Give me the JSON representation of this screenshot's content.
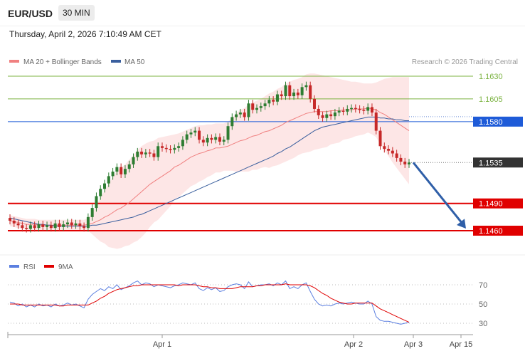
{
  "header": {
    "symbol": "EUR/USD",
    "timeframe": "30 MIN",
    "datetime": "Thursday, April 2, 2026 7:10:49 AM CET"
  },
  "legend": {
    "ma20": "MA 20 + Bollinger Bands",
    "ma50": "MA 50",
    "credit": "Research © 2026 Trading Central",
    "rsi": "RSI",
    "rsi_ma": "9MA"
  },
  "colors": {
    "ma20": "#f08080",
    "bands_fill": "#fde0e0",
    "ma50": "#3a5f9e",
    "candle_up": "#2e7d32",
    "candle_down": "#c62828",
    "resistance_green": "#7cb342",
    "support_red": "#e00000",
    "pivot_blue": "#1e5bd8",
    "current_price": "#333333",
    "rsi_line": "#5b7fe0",
    "rsi_ma_line": "#e00000",
    "arrow": "#2f5fa8"
  },
  "chart_data": [
    {
      "type": "candlestick",
      "title": "EUR/USD",
      "timeframe": "30 MIN",
      "x_ticks": [
        "Apr 1",
        "Apr 2",
        "Apr 3",
        "Apr 15"
      ],
      "ylim": [
        1.1445,
        1.164
      ],
      "levels": [
        {
          "label": "1.1630",
          "value": 1.163,
          "kind": "resistance"
        },
        {
          "label": "1.1605",
          "value": 1.1605,
          "kind": "resistance"
        },
        {
          "label": "1.1580",
          "value": 1.158,
          "kind": "pivot"
        },
        {
          "label": "1.1535",
          "value": 1.1535,
          "kind": "current"
        },
        {
          "label": "1.1490",
          "value": 1.149,
          "kind": "support"
        },
        {
          "label": "1.1460",
          "value": 1.146,
          "kind": "support"
        }
      ],
      "closes": [
        1.1471,
        1.1468,
        1.1466,
        1.1463,
        1.1462,
        1.1466,
        1.1463,
        1.1467,
        1.1464,
        1.1466,
        1.1463,
        1.1468,
        1.1464,
        1.1467,
        1.1469,
        1.1466,
        1.1468,
        1.1465,
        1.1463,
        1.1475,
        1.1485,
        1.1498,
        1.1506,
        1.1512,
        1.152,
        1.1525,
        1.153,
        1.1522,
        1.1528,
        1.1533,
        1.1541,
        1.1547,
        1.1544,
        1.1546,
        1.1545,
        1.1541,
        1.1553,
        1.1551,
        1.155,
        1.1549,
        1.1551,
        1.1553,
        1.156,
        1.1566,
        1.1568,
        1.157,
        1.156,
        1.1557,
        1.1562,
        1.156,
        1.1563,
        1.1558,
        1.156,
        1.1575,
        1.1585,
        1.1588,
        1.159,
        1.1585,
        1.16,
        1.1593,
        1.1595,
        1.1597,
        1.16,
        1.1604,
        1.1602,
        1.161,
        1.1608,
        1.162,
        1.1608,
        1.1612,
        1.1609,
        1.1618,
        1.162,
        1.1605,
        1.1594,
        1.1587,
        1.1584,
        1.1588,
        1.1586,
        1.159,
        1.1592,
        1.1591,
        1.1594,
        1.1595,
        1.1594,
        1.1593,
        1.1592,
        1.1596,
        1.159,
        1.157,
        1.1553,
        1.155,
        1.1548,
        1.1545,
        1.154,
        1.1536,
        1.1533,
        1.1535
      ],
      "ma20": [
        1.1471,
        1.147,
        1.1469,
        1.1468,
        1.1467,
        1.1467,
        1.1467,
        1.1466,
        1.1466,
        1.1466,
        1.1466,
        1.1466,
        1.1466,
        1.1466,
        1.1466,
        1.1466,
        1.1466,
        1.1466,
        1.1466,
        1.1467,
        1.1468,
        1.147,
        1.1472,
        1.1475,
        1.1477,
        1.148,
        1.1483,
        1.1485,
        1.1488,
        1.1491,
        1.1495,
        1.1499,
        1.1503,
        1.1507,
        1.1511,
        1.1514,
        1.1517,
        1.152,
        1.1523,
        1.1526,
        1.153,
        1.1532,
        1.1535,
        1.1538,
        1.1541,
        1.1543,
        1.1545,
        1.1546,
        1.1548,
        1.1549,
        1.1551,
        1.1551,
        1.1552,
        1.1553,
        1.1555,
        1.1557,
        1.1559,
        1.156,
        1.1562,
        1.1564,
        1.1565,
        1.1567,
        1.1569,
        1.157,
        1.1572,
        1.1574,
        1.1576,
        1.1579,
        1.1581,
        1.1583,
        1.1585,
        1.1587,
        1.1589,
        1.159,
        1.1591,
        1.1591,
        1.1591,
        1.1591,
        1.1592,
        1.1592,
        1.1592,
        1.1593,
        1.1593,
        1.1593,
        1.1594,
        1.1594,
        1.1594,
        1.1595,
        1.1594,
        1.1593,
        1.159,
        1.1588,
        1.1585,
        1.1582,
        1.1579,
        1.1576,
        1.1573,
        1.157
      ],
      "bb_upper": [
        1.1477,
        1.1476,
        1.1475,
        1.1474,
        1.1473,
        1.1473,
        1.1473,
        1.1472,
        1.1472,
        1.1472,
        1.1472,
        1.1472,
        1.1472,
        1.1472,
        1.1472,
        1.1472,
        1.1472,
        1.1472,
        1.1472,
        1.1474,
        1.148,
        1.1488,
        1.1496,
        1.1504,
        1.1512,
        1.1519,
        1.1526,
        1.1529,
        1.1533,
        1.1538,
        1.1543,
        1.1549,
        1.1553,
        1.1556,
        1.1558,
        1.1559,
        1.1562,
        1.1563,
        1.1564,
        1.1565,
        1.1566,
        1.1567,
        1.1569,
        1.1571,
        1.1573,
        1.1575,
        1.1576,
        1.1576,
        1.1577,
        1.1577,
        1.1578,
        1.1578,
        1.1578,
        1.158,
        1.1584,
        1.1589,
        1.1593,
        1.1595,
        1.1599,
        1.1601,
        1.1603,
        1.1605,
        1.1608,
        1.1611,
        1.1613,
        1.1616,
        1.1618,
        1.1622,
        1.1624,
        1.1626,
        1.1627,
        1.1629,
        1.1632,
        1.1633,
        1.1633,
        1.1632,
        1.1631,
        1.163,
        1.1629,
        1.1628,
        1.1627,
        1.1626,
        1.1625,
        1.1624,
        1.1624,
        1.1623,
        1.1622,
        1.1622,
        1.1622,
        1.1623,
        1.1625,
        1.1627,
        1.1628,
        1.1629,
        1.1629,
        1.1629,
        1.1629,
        1.1629
      ],
      "bb_lower": [
        1.1465,
        1.1464,
        1.1463,
        1.1462,
        1.1461,
        1.1461,
        1.1461,
        1.146,
        1.146,
        1.146,
        1.146,
        1.146,
        1.146,
        1.146,
        1.146,
        1.146,
        1.146,
        1.146,
        1.146,
        1.146,
        1.1456,
        1.1452,
        1.1448,
        1.1446,
        1.1442,
        1.1441,
        1.144,
        1.1441,
        1.1443,
        1.1444,
        1.1447,
        1.1449,
        1.1453,
        1.1458,
        1.1464,
        1.1469,
        1.1472,
        1.1477,
        1.1482,
        1.1487,
        1.1494,
        1.1497,
        1.1501,
        1.1505,
        1.1509,
        1.1511,
        1.1514,
        1.1516,
        1.1519,
        1.1521,
        1.1524,
        1.1524,
        1.1526,
        1.1526,
        1.1526,
        1.1525,
        1.1525,
        1.1525,
        1.1525,
        1.1527,
        1.1527,
        1.1529,
        1.153,
        1.1529,
        1.1531,
        1.1532,
        1.1534,
        1.1536,
        1.1538,
        1.154,
        1.1543,
        1.1545,
        1.1546,
        1.1547,
        1.1549,
        1.155,
        1.1551,
        1.1552,
        1.1555,
        1.1556,
        1.1557,
        1.156,
        1.1561,
        1.1562,
        1.1564,
        1.1565,
        1.1566,
        1.1568,
        1.1566,
        1.1563,
        1.1555,
        1.1549,
        1.1542,
        1.1535,
        1.1529,
        1.1523,
        1.1517,
        1.1511
      ],
      "ma50": [
        1.1474,
        1.1473,
        1.1472,
        1.1471,
        1.147,
        1.1469,
        1.1468,
        1.1467,
        1.1467,
        1.1466,
        1.1466,
        1.1465,
        1.1465,
        1.1465,
        1.1465,
        1.1465,
        1.1465,
        1.1465,
        1.1465,
        1.1465,
        1.1466,
        1.1466,
        1.1467,
        1.1468,
        1.1469,
        1.147,
        1.1471,
        1.1472,
        1.1473,
        1.1474,
        1.1475,
        1.1477,
        1.1478,
        1.148,
        1.1482,
        1.1484,
        1.1486,
        1.1488,
        1.149,
        1.1492,
        1.1494,
        1.1496,
        1.1498,
        1.15,
        1.1502,
        1.1504,
        1.1506,
        1.1508,
        1.151,
        1.1512,
        1.1514,
        1.1516,
        1.1518,
        1.152,
        1.1522,
        1.1524,
        1.1526,
        1.1528,
        1.153,
        1.1532,
        1.1534,
        1.1536,
        1.1538,
        1.154,
        1.1542,
        1.1545,
        1.1547,
        1.155,
        1.1552,
        1.1555,
        1.1558,
        1.1561,
        1.1564,
        1.1567,
        1.157,
        1.1572,
        1.1574,
        1.1575,
        1.1576,
        1.1577,
        1.1578,
        1.1579,
        1.158,
        1.1581,
        1.1582,
        1.1583,
        1.1584,
        1.1585,
        1.1585,
        1.1585,
        1.1584,
        1.1584,
        1.1583,
        1.1583,
        1.1582,
        1.1582,
        1.1581,
        1.1581
      ],
      "forecast_arrow": {
        "from": 1.1535,
        "to": 1.146
      }
    },
    {
      "type": "line",
      "title": "RSI",
      "y_ticks": [
        70,
        50,
        30
      ],
      "ylim": [
        25,
        80
      ],
      "series": [
        {
          "name": "RSI",
          "values": [
            52,
            51,
            48,
            50,
            47,
            49,
            47,
            50,
            48,
            49,
            47,
            50,
            48,
            49,
            51,
            49,
            50,
            48,
            46,
            55,
            60,
            63,
            66,
            64,
            68,
            66,
            70,
            65,
            67,
            69,
            72,
            74,
            70,
            72,
            71,
            68,
            70,
            69,
            68,
            67,
            69,
            70,
            72,
            71,
            70,
            72,
            66,
            64,
            67,
            65,
            67,
            63,
            64,
            68,
            70,
            71,
            70,
            66,
            73,
            68,
            69,
            70,
            70,
            71,
            69,
            72,
            70,
            74,
            66,
            68,
            66,
            70,
            72,
            63,
            55,
            50,
            48,
            49,
            48,
            50,
            51,
            50,
            51,
            52,
            51,
            50,
            50,
            53,
            50,
            37,
            33,
            32,
            32,
            31,
            30,
            29,
            30,
            31
          ]
        },
        {
          "name": "9MA",
          "values": [
            50,
            50,
            50,
            49,
            49,
            49,
            49,
            49,
            49,
            49,
            49,
            49,
            48,
            48,
            49,
            49,
            49,
            49,
            49,
            49,
            51,
            53,
            56,
            58,
            61,
            63,
            65,
            66,
            67,
            68,
            69,
            69,
            70,
            70,
            70,
            70,
            70,
            70,
            70,
            70,
            70,
            69,
            70,
            70,
            70,
            70,
            69,
            68,
            68,
            67,
            67,
            66,
            66,
            66,
            66,
            67,
            68,
            68,
            68,
            68,
            69,
            69,
            70,
            70,
            70,
            70,
            70,
            71,
            70,
            70,
            70,
            70,
            70,
            69,
            67,
            64,
            61,
            59,
            56,
            54,
            52,
            51,
            50,
            50,
            51,
            51,
            51,
            51,
            51,
            48,
            45,
            43,
            41,
            39,
            37,
            35,
            33,
            31
          ]
        }
      ]
    }
  ]
}
